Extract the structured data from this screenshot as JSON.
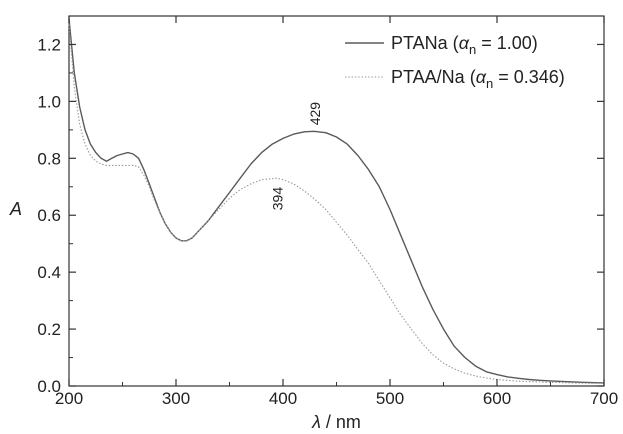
{
  "chart_data": {
    "type": "line",
    "xlabel": "λ / nm",
    "xlabel_symbol": "λ",
    "xlabel_unit": " / nm",
    "ylabel": "A",
    "xlim": [
      200,
      700
    ],
    "ylim": [
      0.0,
      1.3
    ],
    "x_ticks": [
      200,
      300,
      400,
      500,
      600,
      700
    ],
    "x_tick_labels": [
      "200",
      "300",
      "400",
      "500",
      "600",
      "700"
    ],
    "y_ticks": [
      0.0,
      0.2,
      0.4,
      0.6,
      0.8,
      1.0,
      1.2
    ],
    "y_tick_labels": [
      "0.0",
      "0.2",
      "0.4",
      "0.6",
      "0.8",
      "1.0",
      "1.2"
    ],
    "grid": false,
    "legend_position": "top-right",
    "series": [
      {
        "name": "PTANa (αn = 1.00)",
        "legend_parts": [
          "PTANa (",
          "α",
          "n",
          " = 1.00)"
        ],
        "color": "#5a5a5a",
        "style": "solid",
        "x": [
          200,
          205,
          210,
          215,
          220,
          225,
          230,
          235,
          240,
          245,
          250,
          255,
          260,
          265,
          270,
          275,
          280,
          285,
          290,
          295,
          300,
          305,
          310,
          315,
          320,
          330,
          340,
          350,
          360,
          370,
          380,
          390,
          400,
          410,
          420,
          429,
          440,
          450,
          460,
          470,
          480,
          490,
          500,
          510,
          520,
          530,
          540,
          550,
          560,
          570,
          580,
          590,
          600,
          610,
          620,
          630,
          640,
          650,
          660,
          680,
          700
        ],
        "y": [
          1.29,
          1.1,
          0.98,
          0.9,
          0.85,
          0.82,
          0.8,
          0.79,
          0.8,
          0.81,
          0.815,
          0.82,
          0.815,
          0.8,
          0.76,
          0.71,
          0.66,
          0.61,
          0.57,
          0.54,
          0.52,
          0.51,
          0.51,
          0.52,
          0.54,
          0.58,
          0.63,
          0.68,
          0.73,
          0.78,
          0.82,
          0.85,
          0.87,
          0.885,
          0.893,
          0.895,
          0.89,
          0.875,
          0.85,
          0.81,
          0.76,
          0.7,
          0.62,
          0.53,
          0.44,
          0.35,
          0.27,
          0.2,
          0.14,
          0.1,
          0.07,
          0.05,
          0.04,
          0.032,
          0.027,
          0.023,
          0.02,
          0.018,
          0.016,
          0.013,
          0.011
        ]
      },
      {
        "name": "PTAA/Na (αn = 0.346)",
        "legend_parts": [
          "PTAA/Na (",
          "α",
          "n",
          " = 0.346)"
        ],
        "color": "#9a9a9a",
        "style": "dotted",
        "x": [
          200,
          205,
          210,
          215,
          220,
          225,
          230,
          235,
          240,
          245,
          250,
          255,
          260,
          265,
          270,
          275,
          280,
          285,
          290,
          295,
          300,
          305,
          310,
          315,
          320,
          330,
          340,
          350,
          360,
          370,
          380,
          394,
          400,
          410,
          420,
          430,
          440,
          450,
          460,
          470,
          480,
          490,
          500,
          510,
          520,
          530,
          540,
          550,
          560,
          570,
          580,
          590,
          600,
          610,
          620,
          640,
          660,
          680,
          700
        ],
        "y": [
          1.27,
          1.05,
          0.92,
          0.85,
          0.81,
          0.79,
          0.78,
          0.775,
          0.775,
          0.775,
          0.775,
          0.775,
          0.775,
          0.77,
          0.74,
          0.7,
          0.65,
          0.61,
          0.57,
          0.54,
          0.52,
          0.51,
          0.51,
          0.52,
          0.54,
          0.58,
          0.62,
          0.66,
          0.69,
          0.71,
          0.725,
          0.73,
          0.725,
          0.71,
          0.685,
          0.655,
          0.62,
          0.575,
          0.53,
          0.48,
          0.43,
          0.37,
          0.31,
          0.25,
          0.2,
          0.15,
          0.11,
          0.08,
          0.06,
          0.045,
          0.035,
          0.028,
          0.023,
          0.02,
          0.017,
          0.014,
          0.012,
          0.01,
          0.009
        ]
      }
    ],
    "annotations": [
      {
        "text": "429",
        "x": 429,
        "y": 0.895,
        "series": 0
      },
      {
        "text": "394",
        "x": 394,
        "y": 0.73,
        "series": 1
      }
    ]
  }
}
